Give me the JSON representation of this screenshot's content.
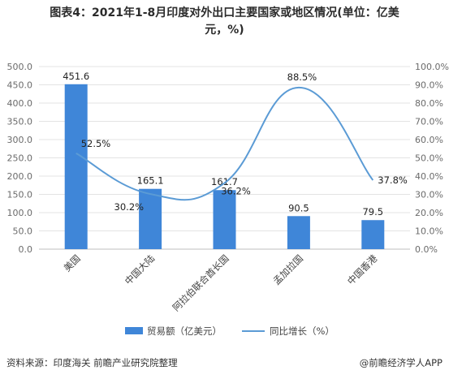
{
  "title_line1": "图表4：2021年1-8月印度对外出口主要国家或地区情况(单位：亿美",
  "title_line2": "元，%)",
  "source": "资料来源：印度海关 前瞻产业研究院整理",
  "brand": "@前瞻经济学人APP",
  "colors": {
    "bar": "#3f86d8",
    "line": "#5b9bd5",
    "grid": "#e3e3e3",
    "axis_text": "#6b6b6b"
  },
  "chart_data": {
    "type": "bar",
    "categories": [
      "美国",
      "中国大陆",
      "阿拉伯联合酋长国",
      "孟加拉国",
      "中国香港"
    ],
    "series": [
      {
        "name": "贸易额（亿美元）",
        "type": "bar",
        "values": [
          451.6,
          165.1,
          161.7,
          90.5,
          79.5
        ],
        "labels": [
          "451.6",
          "165.1",
          "161.7",
          "90.5",
          "79.5"
        ]
      },
      {
        "name": "同比增长（%）",
        "type": "line",
        "axis": "right",
        "values": [
          52.5,
          30.2,
          36.2,
          88.5,
          37.8
        ],
        "labels": [
          "52.5%",
          "30.2%",
          "36.2%",
          "88.5%",
          "37.8%"
        ]
      }
    ],
    "y_left": {
      "min": 0,
      "max": 500,
      "step": 50,
      "ticks": [
        "0.0",
        "50.0",
        "100.0",
        "150.0",
        "200.0",
        "250.0",
        "300.0",
        "350.0",
        "400.0",
        "450.0",
        "500.0"
      ]
    },
    "y_right": {
      "min": 0,
      "max": 100,
      "step": 10,
      "ticks": [
        "0.0%",
        "10.0%",
        "20.0%",
        "30.0%",
        "40.0%",
        "50.0%",
        "60.0%",
        "70.0%",
        "80.0%",
        "90.0%",
        "100.0%"
      ]
    },
    "grid": true,
    "legend_position": "bottom"
  }
}
